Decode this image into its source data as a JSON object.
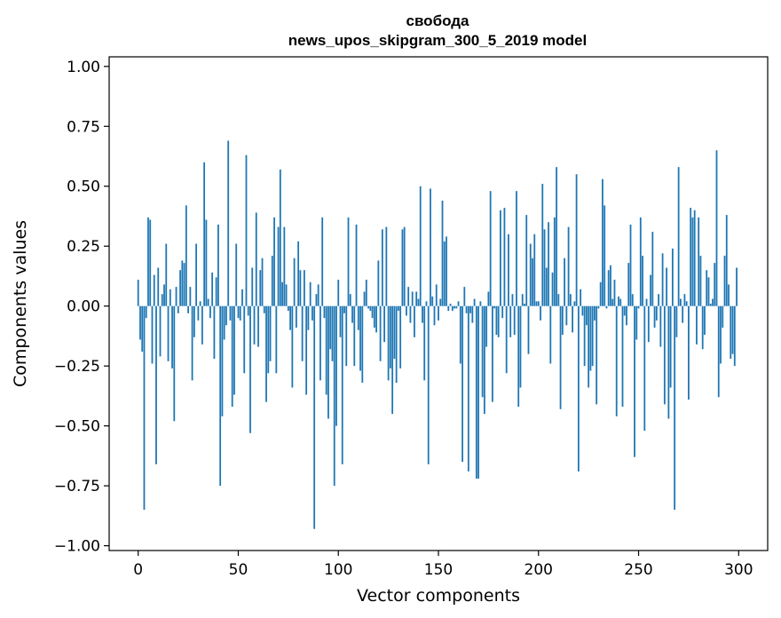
{
  "chart_data": {
    "type": "bar",
    "title": "свобода",
    "subtitle": "news_upos_skipgram_300_5_2019 model",
    "xlabel": "Vector components",
    "ylabel": "Components values",
    "xlim": [
      -14.5,
      314.5
    ],
    "ylim": [
      -1.02,
      1.04
    ],
    "xticks": [
      0,
      50,
      100,
      150,
      200,
      250,
      300
    ],
    "yticks": [
      -1.0,
      -0.75,
      -0.5,
      -0.25,
      0.0,
      0.25,
      0.5,
      0.75,
      1.0
    ],
    "yticklabels": [
      "−1.00",
      "−0.75",
      "−0.50",
      "−0.25",
      "0.00",
      "0.25",
      "0.50",
      "0.75",
      "1.00"
    ],
    "bar_color": "#1f77b4",
    "values": [
      0.11,
      -0.14,
      -0.19,
      -0.85,
      -0.05,
      0.37,
      0.36,
      -0.24,
      0.13,
      -0.66,
      0.16,
      -0.21,
      0.05,
      0.09,
      0.26,
      -0.23,
      0.07,
      -0.26,
      -0.48,
      0.08,
      -0.03,
      0.15,
      0.19,
      0.18,
      0.42,
      -0.03,
      0.08,
      -0.31,
      -0.13,
      0.26,
      -0.06,
      0.02,
      -0.16,
      0.6,
      0.36,
      0.03,
      -0.05,
      0.14,
      -0.22,
      0.12,
      0.34,
      -0.75,
      -0.46,
      -0.14,
      -0.08,
      0.69,
      -0.06,
      -0.42,
      -0.37,
      0.26,
      -0.05,
      -0.06,
      0.07,
      -0.28,
      0.63,
      -0.04,
      -0.53,
      0.16,
      -0.16,
      0.39,
      -0.17,
      0.15,
      0.2,
      -0.03,
      -0.4,
      -0.28,
      -0.23,
      0.21,
      0.37,
      -0.28,
      0.33,
      0.57,
      0.1,
      0.33,
      0.09,
      -0.02,
      -0.1,
      -0.34,
      0.2,
      -0.09,
      0.27,
      0.15,
      -0.23,
      0.15,
      -0.37,
      -0.1,
      0.1,
      -0.06,
      -0.93,
      0.05,
      0.09,
      -0.31,
      0.37,
      -0.05,
      -0.37,
      -0.47,
      -0.18,
      -0.23,
      -0.75,
      -0.5,
      0.11,
      -0.13,
      -0.66,
      -0.03,
      -0.25,
      0.37,
      0.05,
      -0.07,
      -0.25,
      0.34,
      -0.1,
      -0.27,
      -0.32,
      0.06,
      0.11,
      -0.01,
      -0.02,
      -0.05,
      -0.09,
      -0.11,
      0.19,
      -0.23,
      0.32,
      -0.15,
      0.33,
      -0.31,
      -0.26,
      -0.45,
      -0.22,
      -0.32,
      -0.02,
      -0.26,
      0.32,
      0.33,
      -0.04,
      0.08,
      -0.07,
      0.06,
      -0.13,
      0.06,
      0.03,
      0.5,
      -0.07,
      -0.31,
      0.02,
      -0.66,
      0.49,
      0.04,
      -0.08,
      0.09,
      -0.06,
      0.03,
      0.44,
      0.27,
      0.29,
      -0.02,
      0.01,
      -0.02,
      -0.01,
      -0.01,
      0.02,
      -0.24,
      -0.65,
      0.08,
      -0.03,
      -0.69,
      -0.03,
      -0.07,
      0.03,
      -0.72,
      -0.72,
      0.02,
      -0.38,
      -0.45,
      -0.17,
      0.06,
      0.48,
      -0.4,
      -0.01,
      -0.12,
      -0.13,
      0.4,
      -0.05,
      0.41,
      -0.28,
      0.3,
      -0.13,
      0.05,
      -0.12,
      0.48,
      -0.42,
      -0.34,
      0.05,
      0.01,
      0.38,
      -0.2,
      0.26,
      0.2,
      0.3,
      0.02,
      0.02,
      -0.06,
      0.51,
      0.32,
      0.16,
      0.35,
      -0.24,
      0.14,
      0.37,
      0.58,
      0.05,
      -0.43,
      -0.12,
      0.2,
      -0.08,
      0.33,
      0.05,
      -0.11,
      0.02,
      0.55,
      -0.69,
      0.07,
      -0.04,
      -0.25,
      -0.08,
      -0.34,
      -0.27,
      -0.25,
      -0.06,
      -0.41,
      -0.01,
      0.1,
      0.53,
      0.42,
      -0.01,
      0.15,
      0.17,
      0.03,
      0.11,
      -0.46,
      0.04,
      0.03,
      -0.42,
      -0.04,
      -0.08,
      0.18,
      0.34,
      0.05,
      -0.63,
      -0.14,
      -0.01,
      0.37,
      0.21,
      -0.52,
      0.03,
      -0.15,
      0.13,
      0.31,
      -0.09,
      -0.06,
      0.05,
      -0.17,
      0.22,
      -0.41,
      0.16,
      -0.47,
      -0.34,
      0.24,
      -0.85,
      -0.13,
      0.58,
      0.03,
      -0.07,
      0.05,
      0.02,
      -0.39,
      0.41,
      0.37,
      0.4,
      -0.16,
      0.37,
      0.21,
      -0.18,
      -0.12,
      0.15,
      0.12,
      0.01,
      0.03,
      0.18,
      0.65,
      -0.38,
      -0.24,
      -0.09,
      0.21,
      0.38,
      0.09,
      -0.22,
      -0.2,
      -0.25,
      0.16
    ]
  }
}
